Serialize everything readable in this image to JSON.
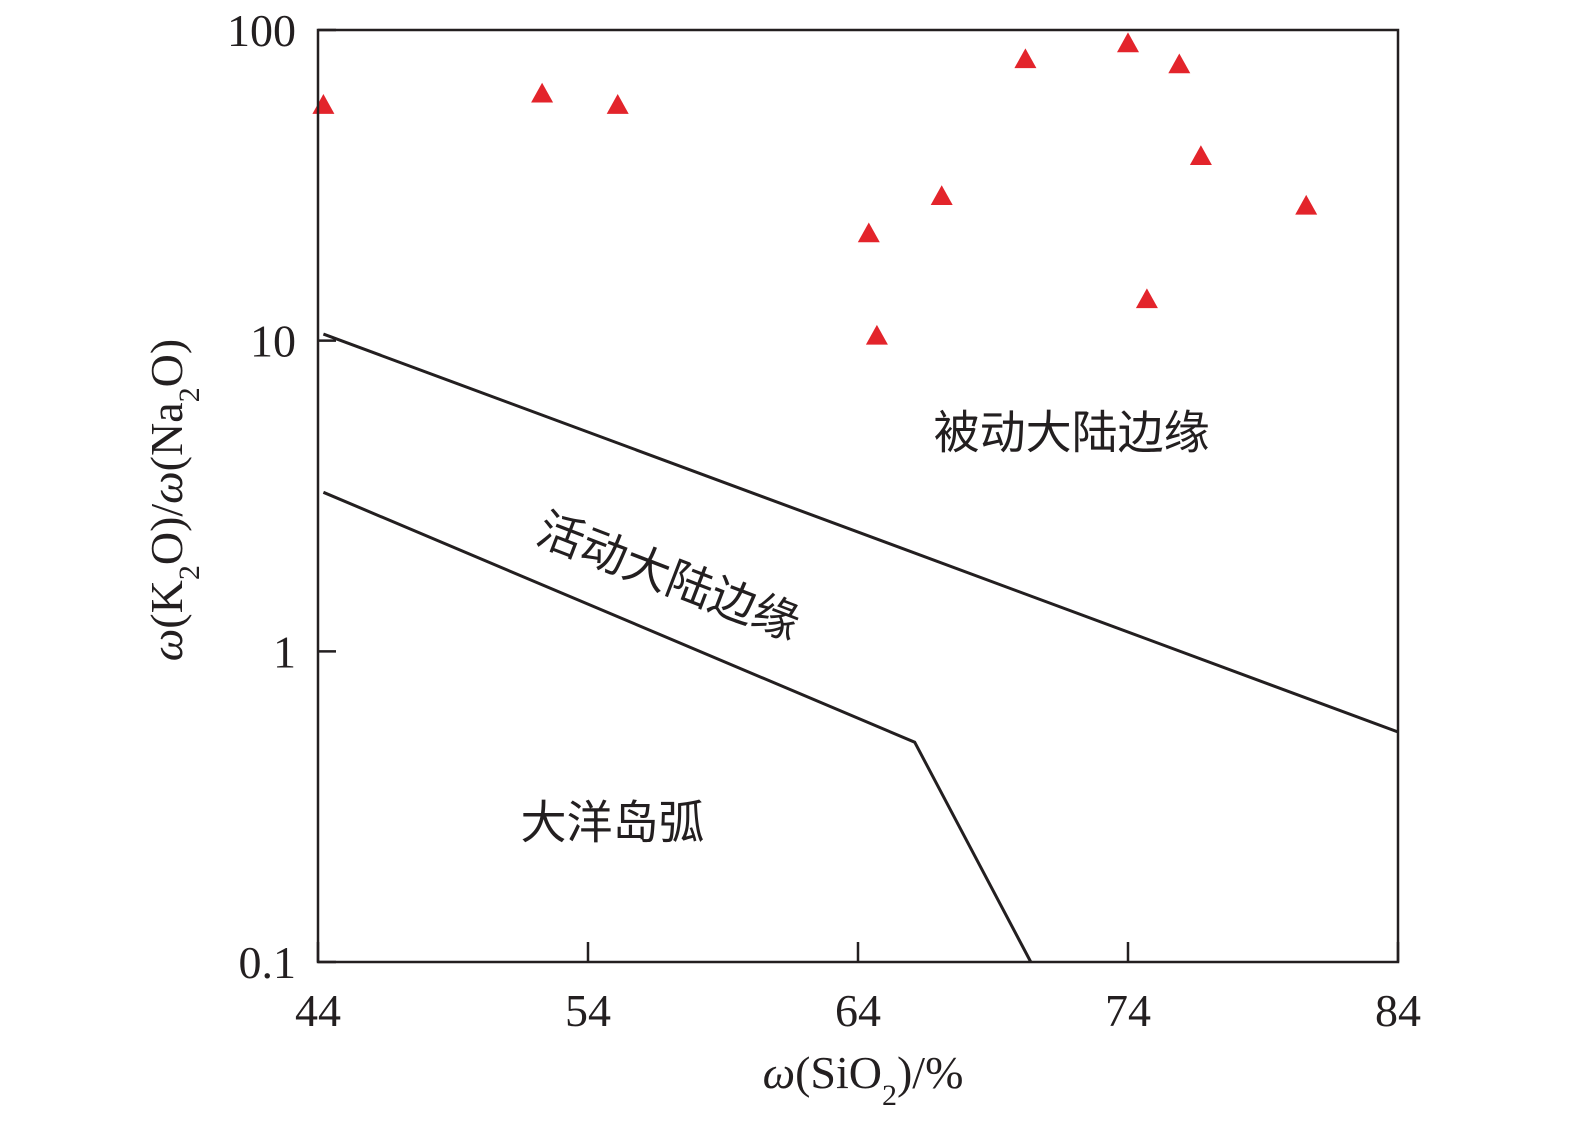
{
  "chart_data": {
    "type": "scatter",
    "x_axis": {
      "label_parts": [
        {
          "text": "ω",
          "italic": true
        },
        {
          "text": "(SiO"
        },
        {
          "text": "2",
          "sub": true
        },
        {
          "text": ")/%"
        }
      ],
      "range": [
        44,
        84
      ],
      "ticks": [
        44,
        54,
        64,
        74,
        84
      ],
      "tick_labels": [
        "44",
        "54",
        "64",
        "74",
        "84"
      ]
    },
    "y_axis": {
      "label_parts": [
        {
          "text": "ω",
          "italic": true
        },
        {
          "text": "(K"
        },
        {
          "text": "2",
          "sub": true
        },
        {
          "text": "O)/"
        },
        {
          "text": "ω",
          "italic": true
        },
        {
          "text": "(Na"
        },
        {
          "text": "2",
          "sub": true
        },
        {
          "text": "O)"
        }
      ],
      "scale": "log",
      "range": [
        0.1,
        100
      ],
      "ticks": [
        0.1,
        1,
        10,
        100
      ],
      "tick_labels": [
        "0.1",
        "1",
        "10",
        "100"
      ]
    },
    "grid": false,
    "series": [
      {
        "marker": "triangle",
        "color": "#e3242b",
        "points": [
          {
            "x": 44.2,
            "y": 57
          },
          {
            "x": 52.3,
            "y": 62
          },
          {
            "x": 55.1,
            "y": 57
          },
          {
            "x": 64.4,
            "y": 22
          },
          {
            "x": 64.7,
            "y": 10.3
          },
          {
            "x": 67.1,
            "y": 29
          },
          {
            "x": 70.2,
            "y": 80
          },
          {
            "x": 74.0,
            "y": 90
          },
          {
            "x": 74.7,
            "y": 13.5
          },
          {
            "x": 75.9,
            "y": 77
          },
          {
            "x": 76.7,
            "y": 39
          },
          {
            "x": 80.6,
            "y": 27
          }
        ]
      }
    ],
    "boundaries": [
      {
        "name": "upper",
        "points": [
          [
            44.2,
            10.5
          ],
          [
            84,
            0.55
          ]
        ]
      },
      {
        "name": "lower",
        "points": [
          [
            44.2,
            3.25
          ],
          [
            66.1,
            0.51
          ],
          [
            70.4,
            0.1
          ]
        ]
      }
    ],
    "regions": [
      {
        "label": "被动大陆边缘",
        "x": 66.8,
        "y": 4.5,
        "rotate": 0
      },
      {
        "label": "活动大陆边缘",
        "x": 52.0,
        "y": 2.25,
        "rotate": 21
      },
      {
        "label": "大洋岛弧",
        "x": 51.5,
        "y": 0.25,
        "rotate": 0
      }
    ]
  }
}
